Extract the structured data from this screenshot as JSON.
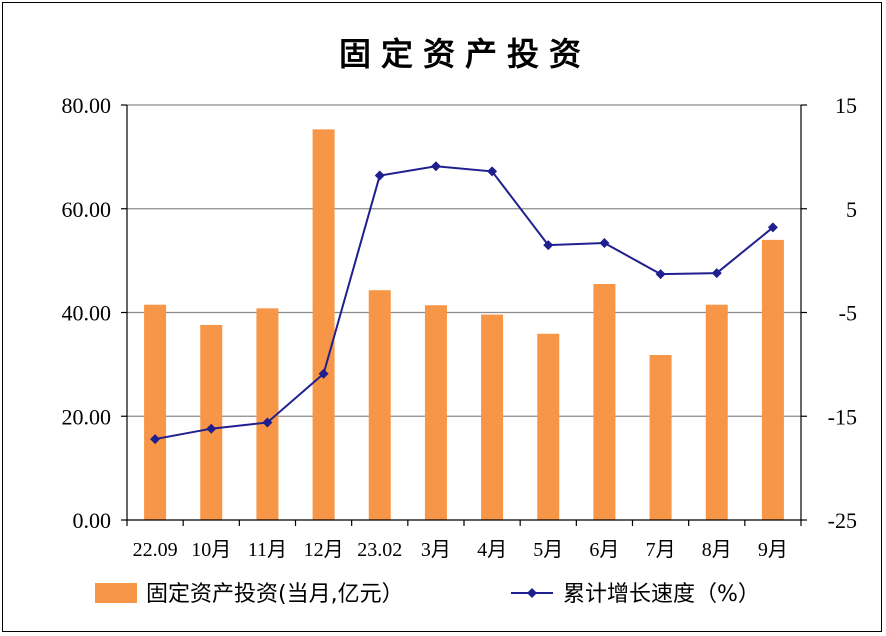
{
  "chart_data": {
    "type": "bar+line",
    "title": "固定资产投资",
    "categories": [
      "22.09",
      "10月",
      "11月",
      "12月",
      "23.02",
      "3月",
      "4月",
      "5月",
      "6月",
      "7月",
      "8月",
      "9月"
    ],
    "series": [
      {
        "name": "固定资产投资(当月,亿元）",
        "type": "bar",
        "axis": "left",
        "color": "#F79646",
        "values": [
          41.5,
          37.6,
          40.8,
          75.3,
          44.3,
          41.4,
          39.6,
          35.9,
          45.5,
          31.8,
          41.5,
          54.0
        ]
      },
      {
        "name": "累计增长速度（%）",
        "type": "line",
        "axis": "right",
        "color": "#1F1F8F",
        "values": [
          -17.2,
          -16.2,
          -15.6,
          -10.9,
          8.2,
          9.1,
          8.6,
          1.5,
          1.7,
          -1.3,
          -1.2,
          3.2
        ]
      }
    ],
    "y_left": {
      "min": 0,
      "max": 80,
      "ticks": [
        "0.00",
        "20.00",
        "40.00",
        "60.00",
        "80.00"
      ]
    },
    "y_right": {
      "min": -25,
      "max": 15,
      "ticks": [
        "-25",
        "-15",
        "-5",
        "5",
        "15"
      ]
    },
    "grid": true,
    "legend_position": "bottom"
  }
}
